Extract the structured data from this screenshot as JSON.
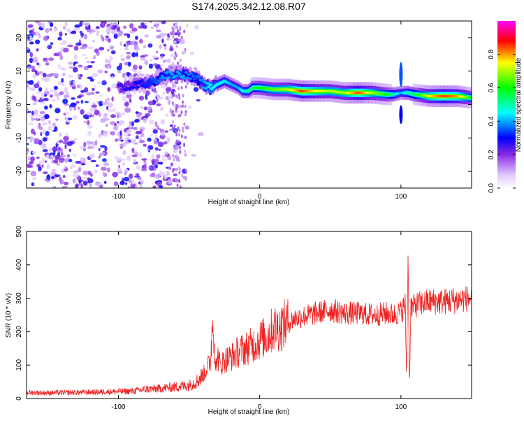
{
  "title": "S174.2025.342.12.08.R07",
  "chart_data": [
    {
      "type": "heatmap",
      "xlabel": "Height of straight line (km)",
      "ylabel": "Frequency (Hz)",
      "xlim": [
        -165,
        150
      ],
      "ylim": [
        -25,
        25
      ],
      "xticks": [
        -100,
        0,
        100
      ],
      "yticks": [
        -20,
        -10,
        0,
        10,
        20
      ],
      "colorbar": {
        "label": "Normalized spectral amplitude",
        "range": [
          0.0,
          1.0
        ],
        "ticks": [
          "0.0",
          "0.2",
          "0.4",
          "0.6",
          "0.8"
        ],
        "colors": [
          "#ffffff",
          "#8a2be2",
          "#0000ff",
          "#00ffff",
          "#00ff00",
          "#ffff00",
          "#ff0000",
          "#ff00ff"
        ]
      },
      "ridge": {
        "x": [
          -100,
          -85,
          -75,
          -65,
          -55,
          -45,
          -40,
          -35,
          -30,
          -25,
          -20,
          -15,
          -12,
          -8,
          -5,
          0,
          10,
          20,
          30,
          40,
          50,
          60,
          70,
          80,
          90,
          95,
          100,
          105,
          110,
          120,
          130,
          140,
          150
        ],
        "freq": [
          5,
          6,
          7,
          9,
          9,
          8,
          6,
          5,
          6,
          7,
          6,
          5,
          4,
          4,
          5,
          5,
          4.5,
          4.5,
          4,
          4,
          4,
          3.5,
          3.5,
          3.5,
          3,
          3,
          3.5,
          3.5,
          3,
          2.5,
          2.5,
          2.5,
          2
        ],
        "amplitude": [
          0.25,
          0.3,
          0.35,
          0.4,
          0.4,
          0.35,
          0.4,
          0.45,
          0.45,
          0.45,
          0.4,
          0.4,
          0.45,
          0.5,
          0.55,
          0.6,
          0.65,
          0.7,
          0.85,
          0.75,
          0.7,
          0.7,
          0.85,
          0.7,
          0.6,
          0.5,
          0.4,
          0.5,
          0.55,
          0.75,
          0.85,
          0.8,
          0.6
        ]
      }
    },
    {
      "type": "line",
      "xlabel": "Height of straight line (km)",
      "ylabel": "SNR (10 * v/v)",
      "xlim": [
        -165,
        150
      ],
      "ylim": [
        0,
        500
      ],
      "xticks": [
        -100,
        0,
        100
      ],
      "yticks": [
        0,
        100,
        200,
        300,
        400,
        500
      ],
      "series": [
        {
          "name": "SNR",
          "color": "#ee2222",
          "x": [
            -165,
            -150,
            -130,
            -110,
            -90,
            -80,
            -70,
            -60,
            -50,
            -45,
            -40,
            -35,
            -33,
            -31,
            -30,
            -28,
            -25,
            -20,
            -15,
            -10,
            -5,
            0,
            5,
            10,
            15,
            20,
            25,
            30,
            40,
            50,
            60,
            70,
            80,
            90,
            95,
            100,
            103,
            104,
            105,
            106,
            107,
            108,
            110,
            115,
            120,
            130,
            140,
            150
          ],
          "y": [
            18,
            17,
            18,
            20,
            22,
            28,
            30,
            35,
            40,
            50,
            70,
            110,
            250,
            80,
            130,
            100,
            115,
            125,
            140,
            150,
            160,
            175,
            185,
            210,
            215,
            225,
            240,
            245,
            255,
            265,
            255,
            255,
            250,
            255,
            250,
            260,
            280,
            60,
            440,
            30,
            280,
            270,
            280,
            285,
            290,
            290,
            295,
            300
          ]
        }
      ]
    }
  ]
}
